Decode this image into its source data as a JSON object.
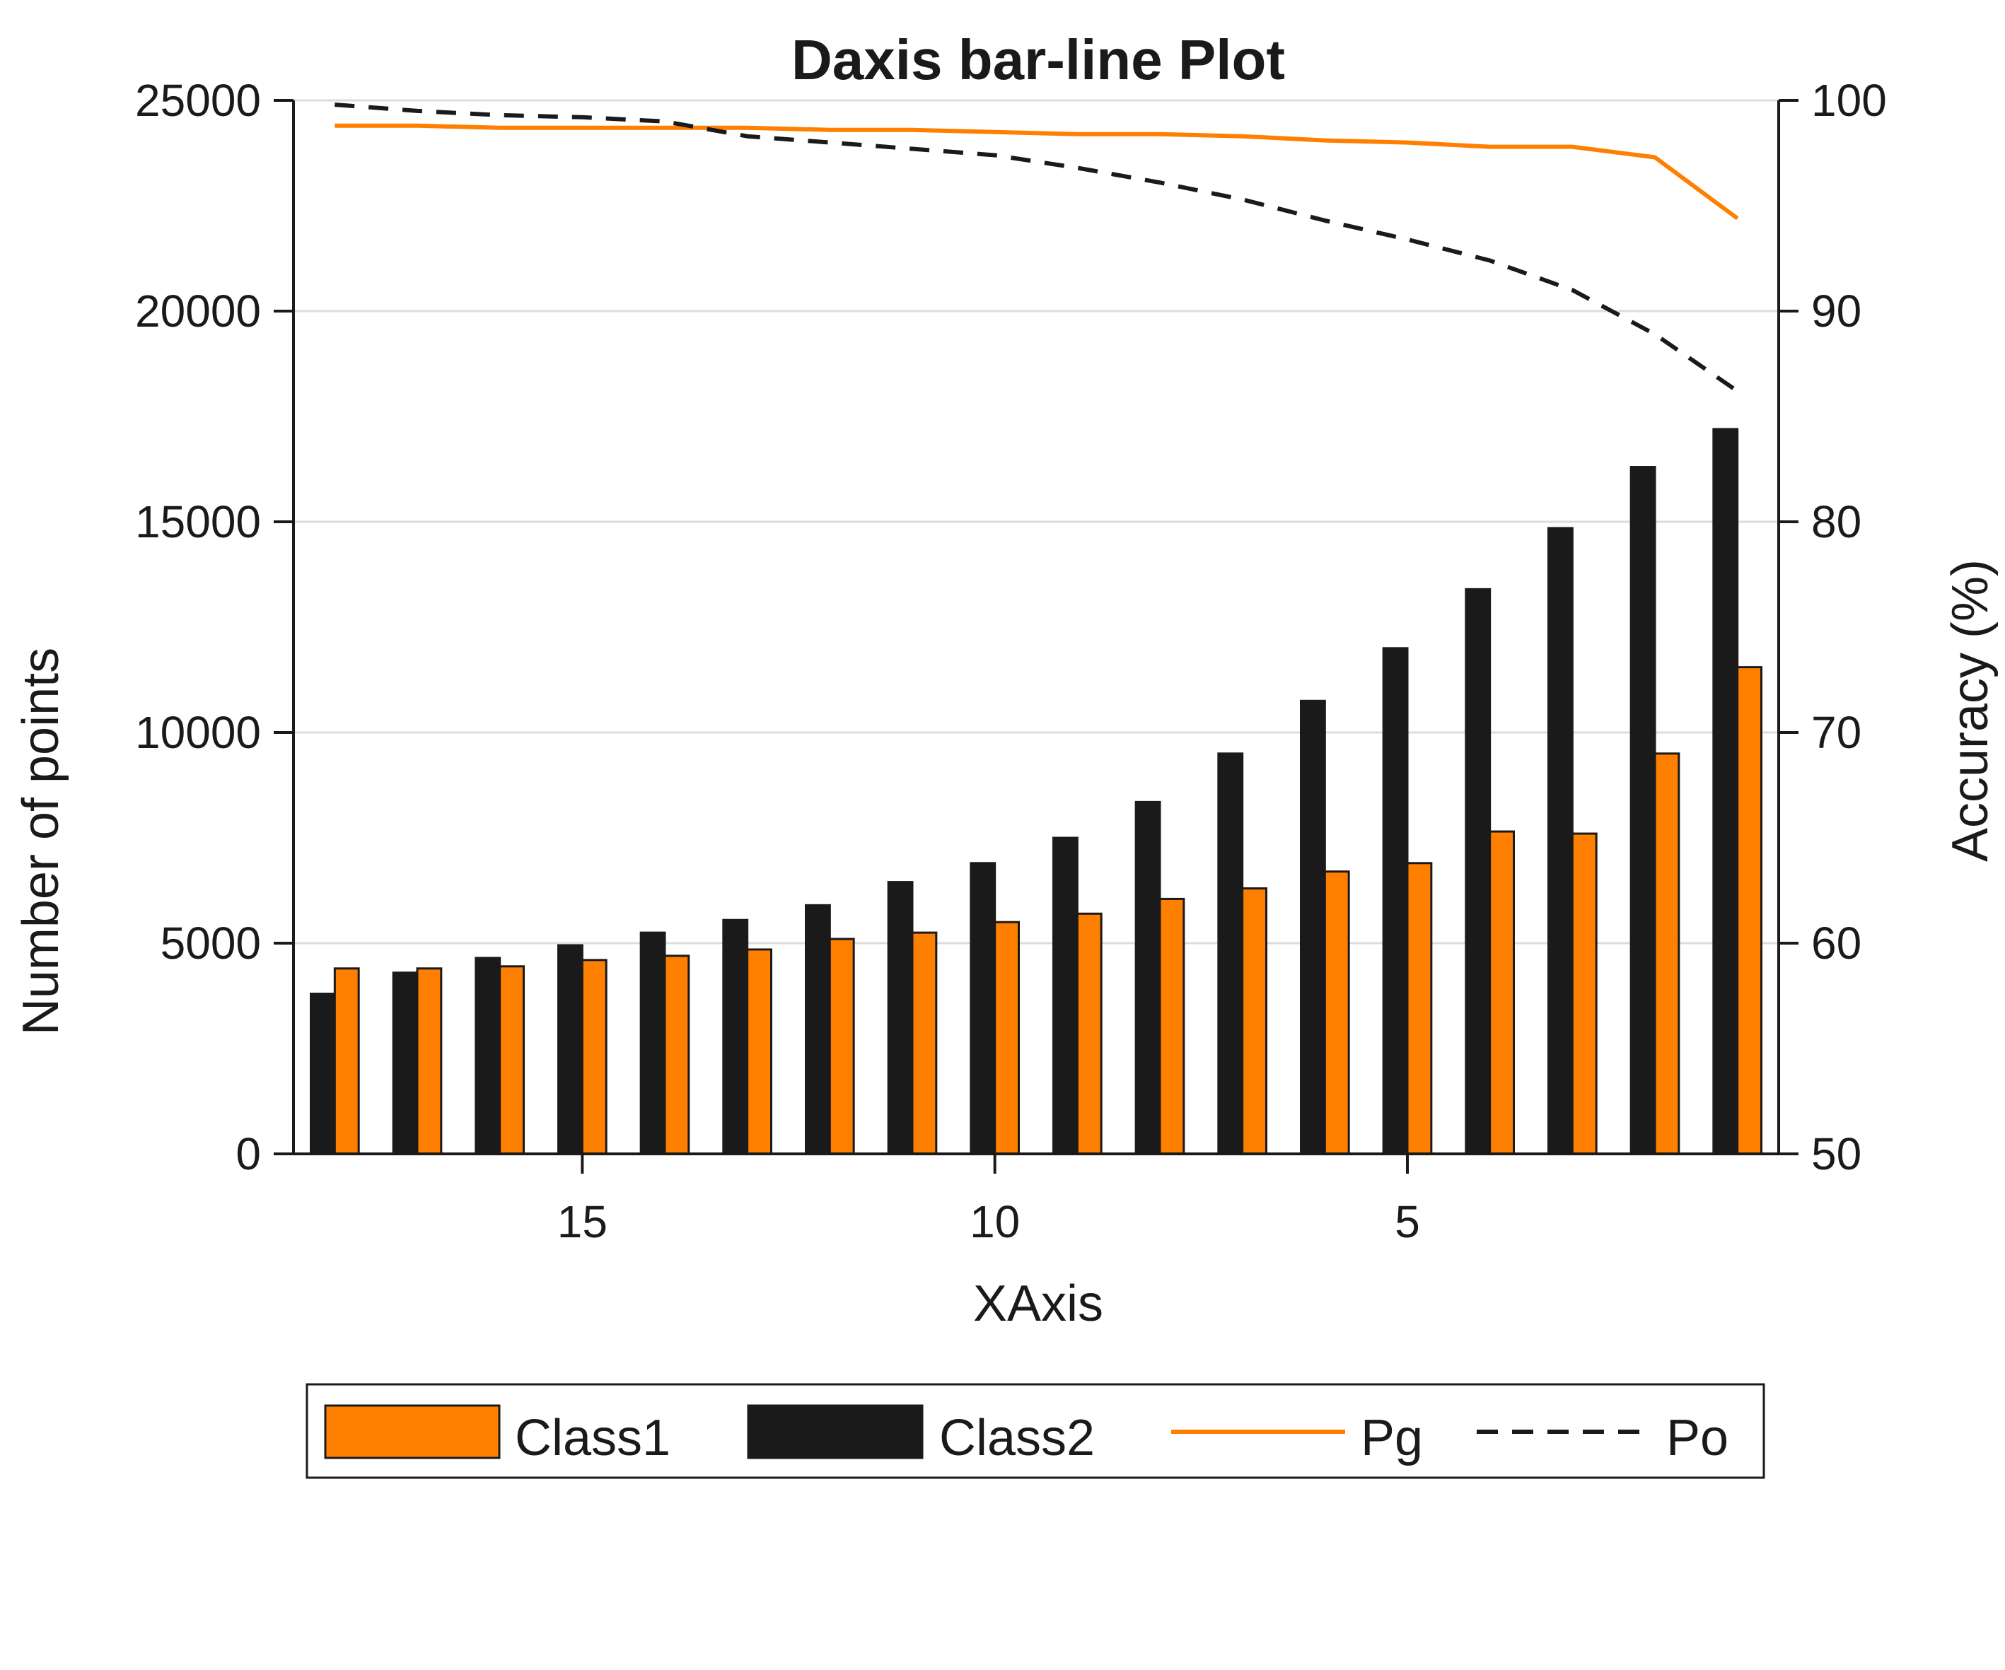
{
  "chart_data": {
    "type": "bar",
    "title": "Daxis bar-line Plot",
    "xlabel": "XAxis",
    "ylabel_left": "Number of points",
    "ylabel_right": "Accuracy (%)",
    "x": [
      18,
      17,
      16,
      15,
      14,
      13,
      12,
      11,
      10,
      9,
      8,
      7,
      6,
      5,
      4,
      3,
      2,
      1
    ],
    "xlim": [
      18.5,
      0.5
    ],
    "x_reversed": true,
    "x_ticks": [
      15,
      10,
      5
    ],
    "ylim_left": [
      0,
      25000
    ],
    "yticks_left": [
      0,
      5000,
      10000,
      15000,
      20000,
      25000
    ],
    "ylim_right": [
      50,
      100
    ],
    "yticks_right": [
      50,
      60,
      70,
      80,
      90,
      100
    ],
    "grid": "horizontal",
    "series": [
      {
        "name": "Class1",
        "kind": "bar",
        "axis": "left",
        "color": "#ff7f00",
        "values": [
          4400,
          4400,
          4450,
          4600,
          4700,
          4850,
          5100,
          5250,
          5500,
          5700,
          6050,
          6300,
          6700,
          6900,
          7650,
          7600,
          9500,
          11550
        ]
      },
      {
        "name": "Class2",
        "kind": "bar",
        "axis": "left",
        "color": "#1a1a1a",
        "values": [
          3800,
          4300,
          4650,
          4950,
          5250,
          5550,
          5900,
          6450,
          6900,
          7500,
          8350,
          9500,
          10750,
          12000,
          13400,
          14850,
          16300,
          17200
        ]
      },
      {
        "name": "Pg",
        "kind": "line",
        "axis": "right",
        "color": "#ff7f00",
        "dash": "solid",
        "values": [
          98.8,
          98.8,
          98.7,
          98.7,
          98.7,
          98.7,
          98.6,
          98.6,
          98.5,
          98.4,
          98.4,
          98.3,
          98.1,
          98.0,
          97.8,
          97.8,
          97.3,
          94.4
        ]
      },
      {
        "name": "Po",
        "kind": "line",
        "axis": "right",
        "color": "#1a1a1a",
        "dash": "dashed",
        "values": [
          99.8,
          99.5,
          99.3,
          99.2,
          99.0,
          98.3,
          98.0,
          97.7,
          97.4,
          96.8,
          96.1,
          95.3,
          94.3,
          93.4,
          92.4,
          91.0,
          88.9,
          86.2
        ]
      }
    ],
    "legend": {
      "position": "bottom",
      "orientation": "horizontal",
      "entries": [
        "Class1",
        "Class2",
        "Pg",
        "Po"
      ]
    }
  }
}
